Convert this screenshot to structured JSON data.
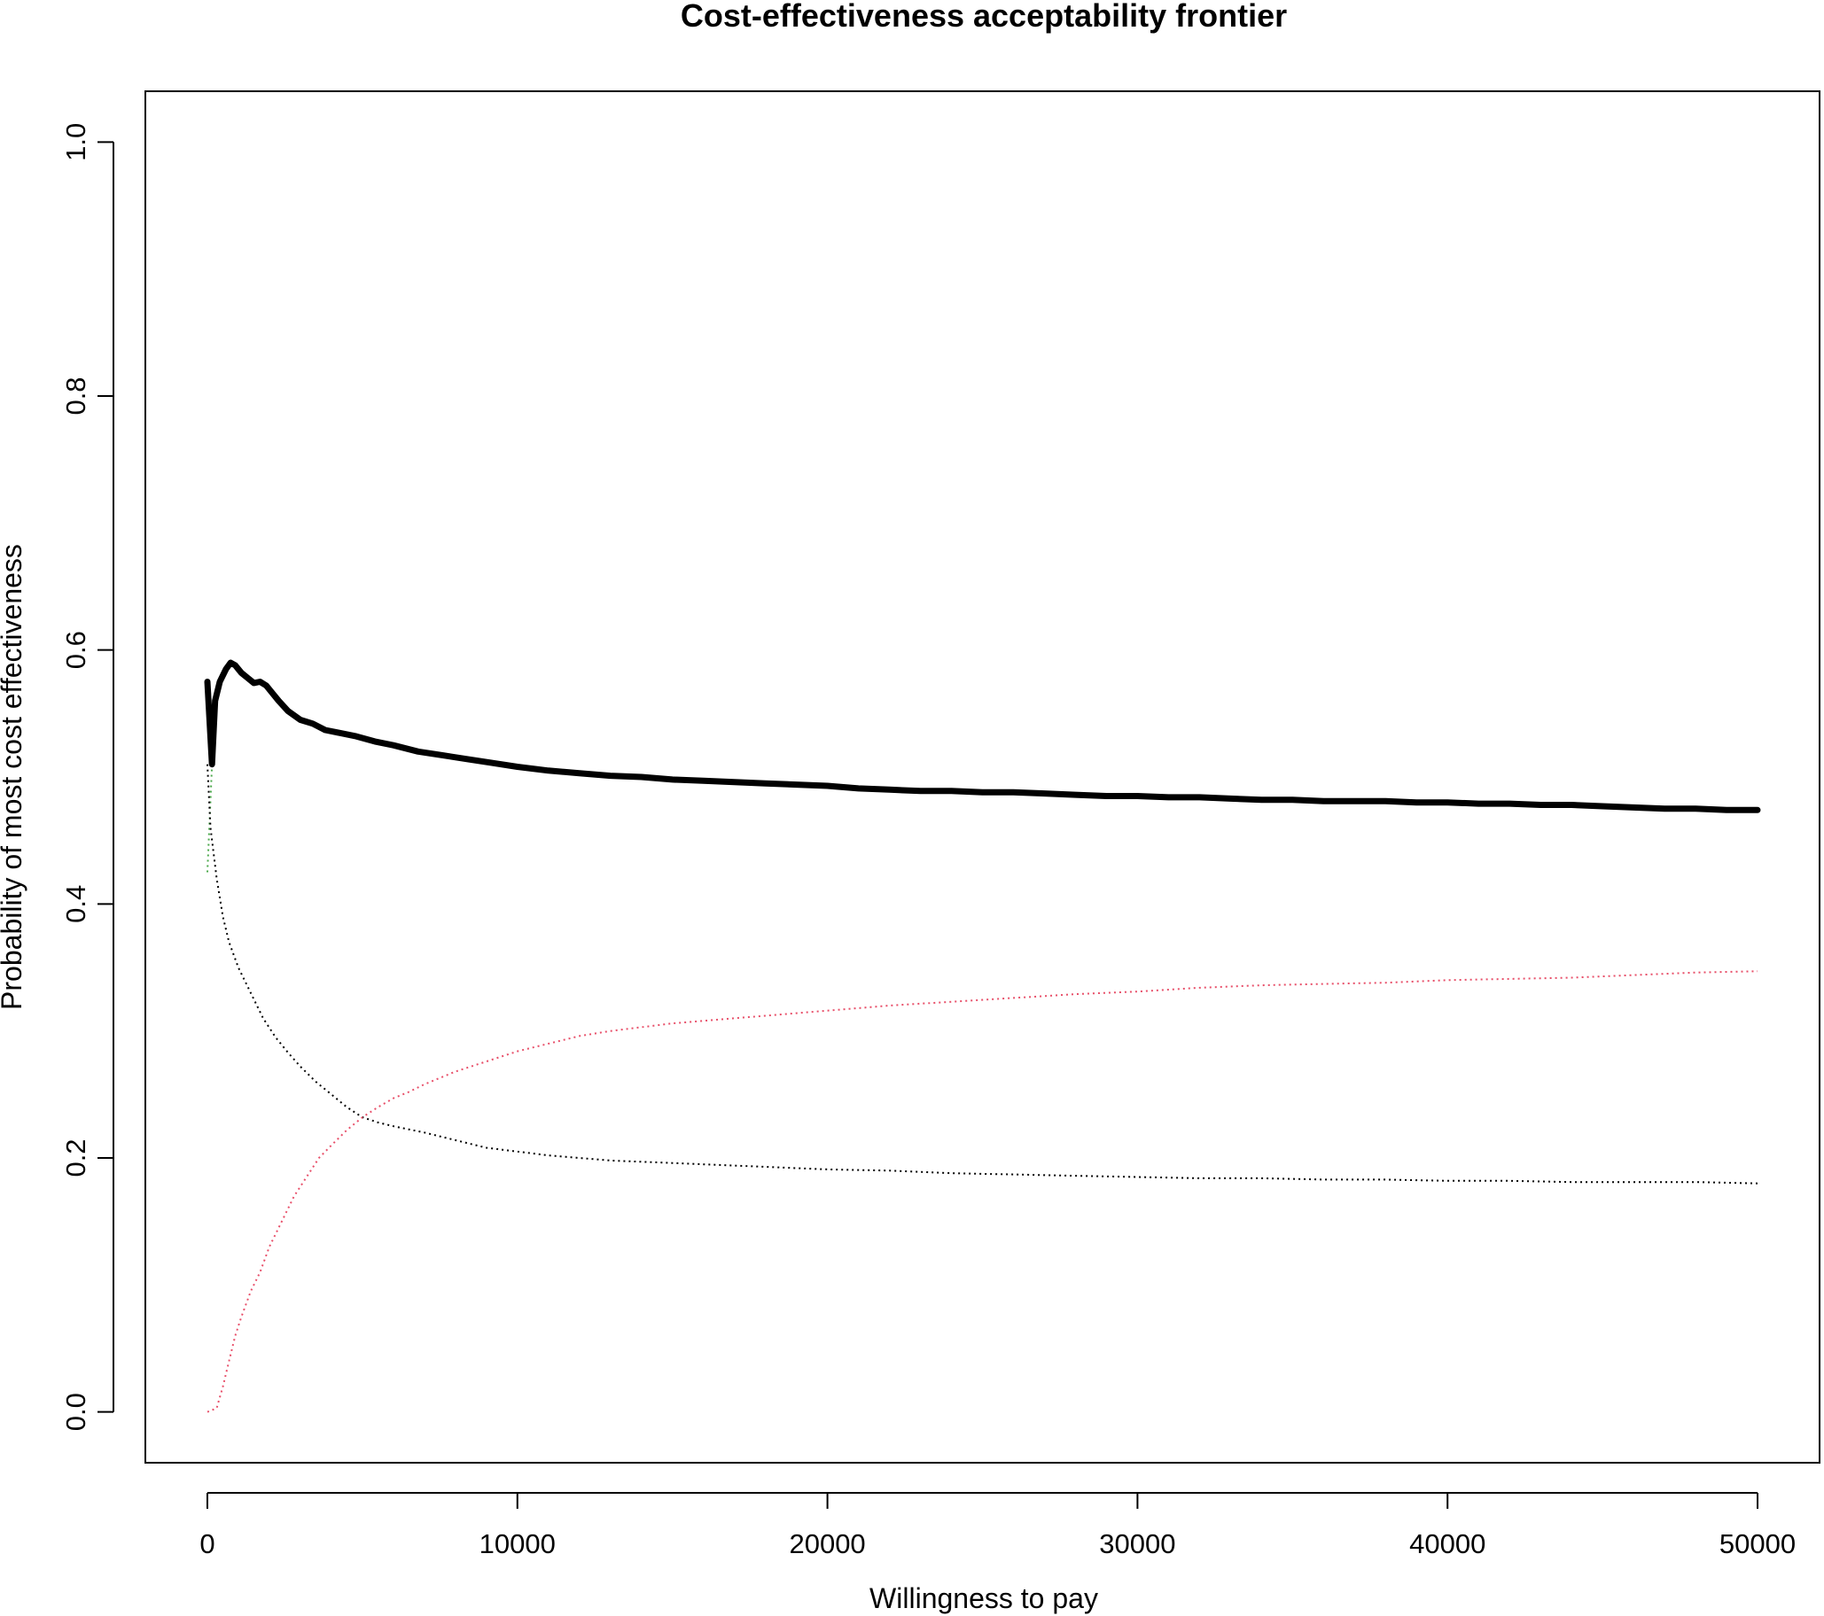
{
  "chart_data": {
    "type": "line",
    "title": "Cost-effectiveness acceptability frontier",
    "xlabel": "Willingness to pay",
    "ylabel": "Probability of most cost effectiveness",
    "xlim": [
      -2000,
      52000
    ],
    "ylim": [
      -0.04,
      1.04
    ],
    "xticks": [
      0,
      10000,
      20000,
      30000,
      40000,
      50000
    ],
    "xtick_labels": [
      "0",
      "10000",
      "20000",
      "30000",
      "40000",
      "50000"
    ],
    "yticks": [
      0.0,
      0.2,
      0.4,
      0.6,
      0.8,
      1.0
    ],
    "ytick_labels": [
      "0.0",
      "0.2",
      "0.4",
      "0.6",
      "0.8",
      "1.0"
    ],
    "grid": false,
    "series": [
      {
        "style": "solid-thick",
        "color": "#000000",
        "x": [
          0,
          150,
          250,
          400,
          600,
          750,
          900,
          1100,
          1300,
          1500,
          1700,
          1900,
          2100,
          2300,
          2600,
          3000,
          3400,
          3800,
          4200,
          4800,
          5400,
          6000,
          6800,
          7600,
          8400,
          9200,
          10000,
          11000,
          12000,
          13000,
          14000,
          15000,
          16000,
          17000,
          18000,
          19000,
          20000,
          21000,
          22000,
          23000,
          24000,
          25000,
          26000,
          27000,
          28000,
          29000,
          30000,
          31000,
          32000,
          33000,
          34000,
          35000,
          36000,
          37000,
          38000,
          39000,
          40000,
          41000,
          42000,
          43000,
          44000,
          45000,
          46000,
          47000,
          48000,
          49000,
          50000
        ],
        "y": [
          0.575,
          0.51,
          0.56,
          0.575,
          0.585,
          0.59,
          0.588,
          0.582,
          0.578,
          0.574,
          0.575,
          0.572,
          0.566,
          0.56,
          0.552,
          0.545,
          0.542,
          0.537,
          0.535,
          0.532,
          0.528,
          0.525,
          0.52,
          0.517,
          0.514,
          0.511,
          0.508,
          0.505,
          0.503,
          0.501,
          0.5,
          0.498,
          0.497,
          0.496,
          0.495,
          0.494,
          0.493,
          0.491,
          0.49,
          0.489,
          0.489,
          0.488,
          0.488,
          0.487,
          0.486,
          0.485,
          0.485,
          0.484,
          0.484,
          0.483,
          0.482,
          0.482,
          0.481,
          0.481,
          0.481,
          0.48,
          0.48,
          0.479,
          0.479,
          0.478,
          0.478,
          0.477,
          0.476,
          0.475,
          0.475,
          0.474,
          0.474
        ]
      },
      {
        "style": "dotted",
        "color": "#000000",
        "x": [
          0,
          100,
          300,
          500,
          700,
          1000,
          1400,
          1800,
          2200,
          2600,
          3000,
          3500,
          4000,
          4500,
          5000,
          5500,
          6000,
          7000,
          8000,
          9000,
          10000,
          11000,
          12000,
          13000,
          14000,
          15000,
          16000,
          17000,
          18000,
          19000,
          20000,
          22000,
          24000,
          26000,
          28000,
          30000,
          32000,
          34000,
          36000,
          38000,
          40000,
          42000,
          44000,
          46000,
          48000,
          50000
        ],
        "y": [
          0.51,
          0.46,
          0.42,
          0.39,
          0.37,
          0.35,
          0.33,
          0.31,
          0.295,
          0.283,
          0.272,
          0.26,
          0.25,
          0.24,
          0.232,
          0.228,
          0.225,
          0.22,
          0.214,
          0.208,
          0.205,
          0.202,
          0.2,
          0.198,
          0.197,
          0.196,
          0.195,
          0.194,
          0.193,
          0.192,
          0.191,
          0.19,
          0.188,
          0.187,
          0.186,
          0.185,
          0.184,
          0.184,
          0.183,
          0.183,
          0.182,
          0.182,
          0.181,
          0.181,
          0.181,
          0.18
        ]
      },
      {
        "style": "dotted",
        "color": "#e8506a",
        "x": [
          0,
          300,
          500,
          700,
          900,
          1100,
          1400,
          1700,
          2000,
          2400,
          2800,
          3200,
          3600,
          4000,
          4500,
          5000,
          5500,
          6000,
          6500,
          7000,
          8000,
          9000,
          10000,
          11000,
          12000,
          13000,
          14000,
          15000,
          16000,
          17000,
          18000,
          19000,
          20000,
          21000,
          22000,
          24000,
          26000,
          28000,
          30000,
          32000,
          34000,
          36000,
          38000,
          40000,
          42000,
          44000,
          46000,
          48000,
          50000
        ],
        "y": [
          0.0,
          0.003,
          0.02,
          0.04,
          0.06,
          0.075,
          0.095,
          0.11,
          0.13,
          0.15,
          0.17,
          0.185,
          0.2,
          0.21,
          0.222,
          0.232,
          0.24,
          0.247,
          0.252,
          0.258,
          0.268,
          0.276,
          0.284,
          0.29,
          0.296,
          0.3,
          0.303,
          0.306,
          0.308,
          0.31,
          0.312,
          0.314,
          0.316,
          0.318,
          0.32,
          0.323,
          0.326,
          0.329,
          0.331,
          0.334,
          0.336,
          0.337,
          0.338,
          0.34,
          0.341,
          0.342,
          0.344,
          0.346,
          0.347
        ]
      },
      {
        "style": "dotted",
        "color": "#4aa84a",
        "x": [
          0,
          150
        ],
        "y": [
          0.425,
          0.51
        ]
      }
    ]
  }
}
